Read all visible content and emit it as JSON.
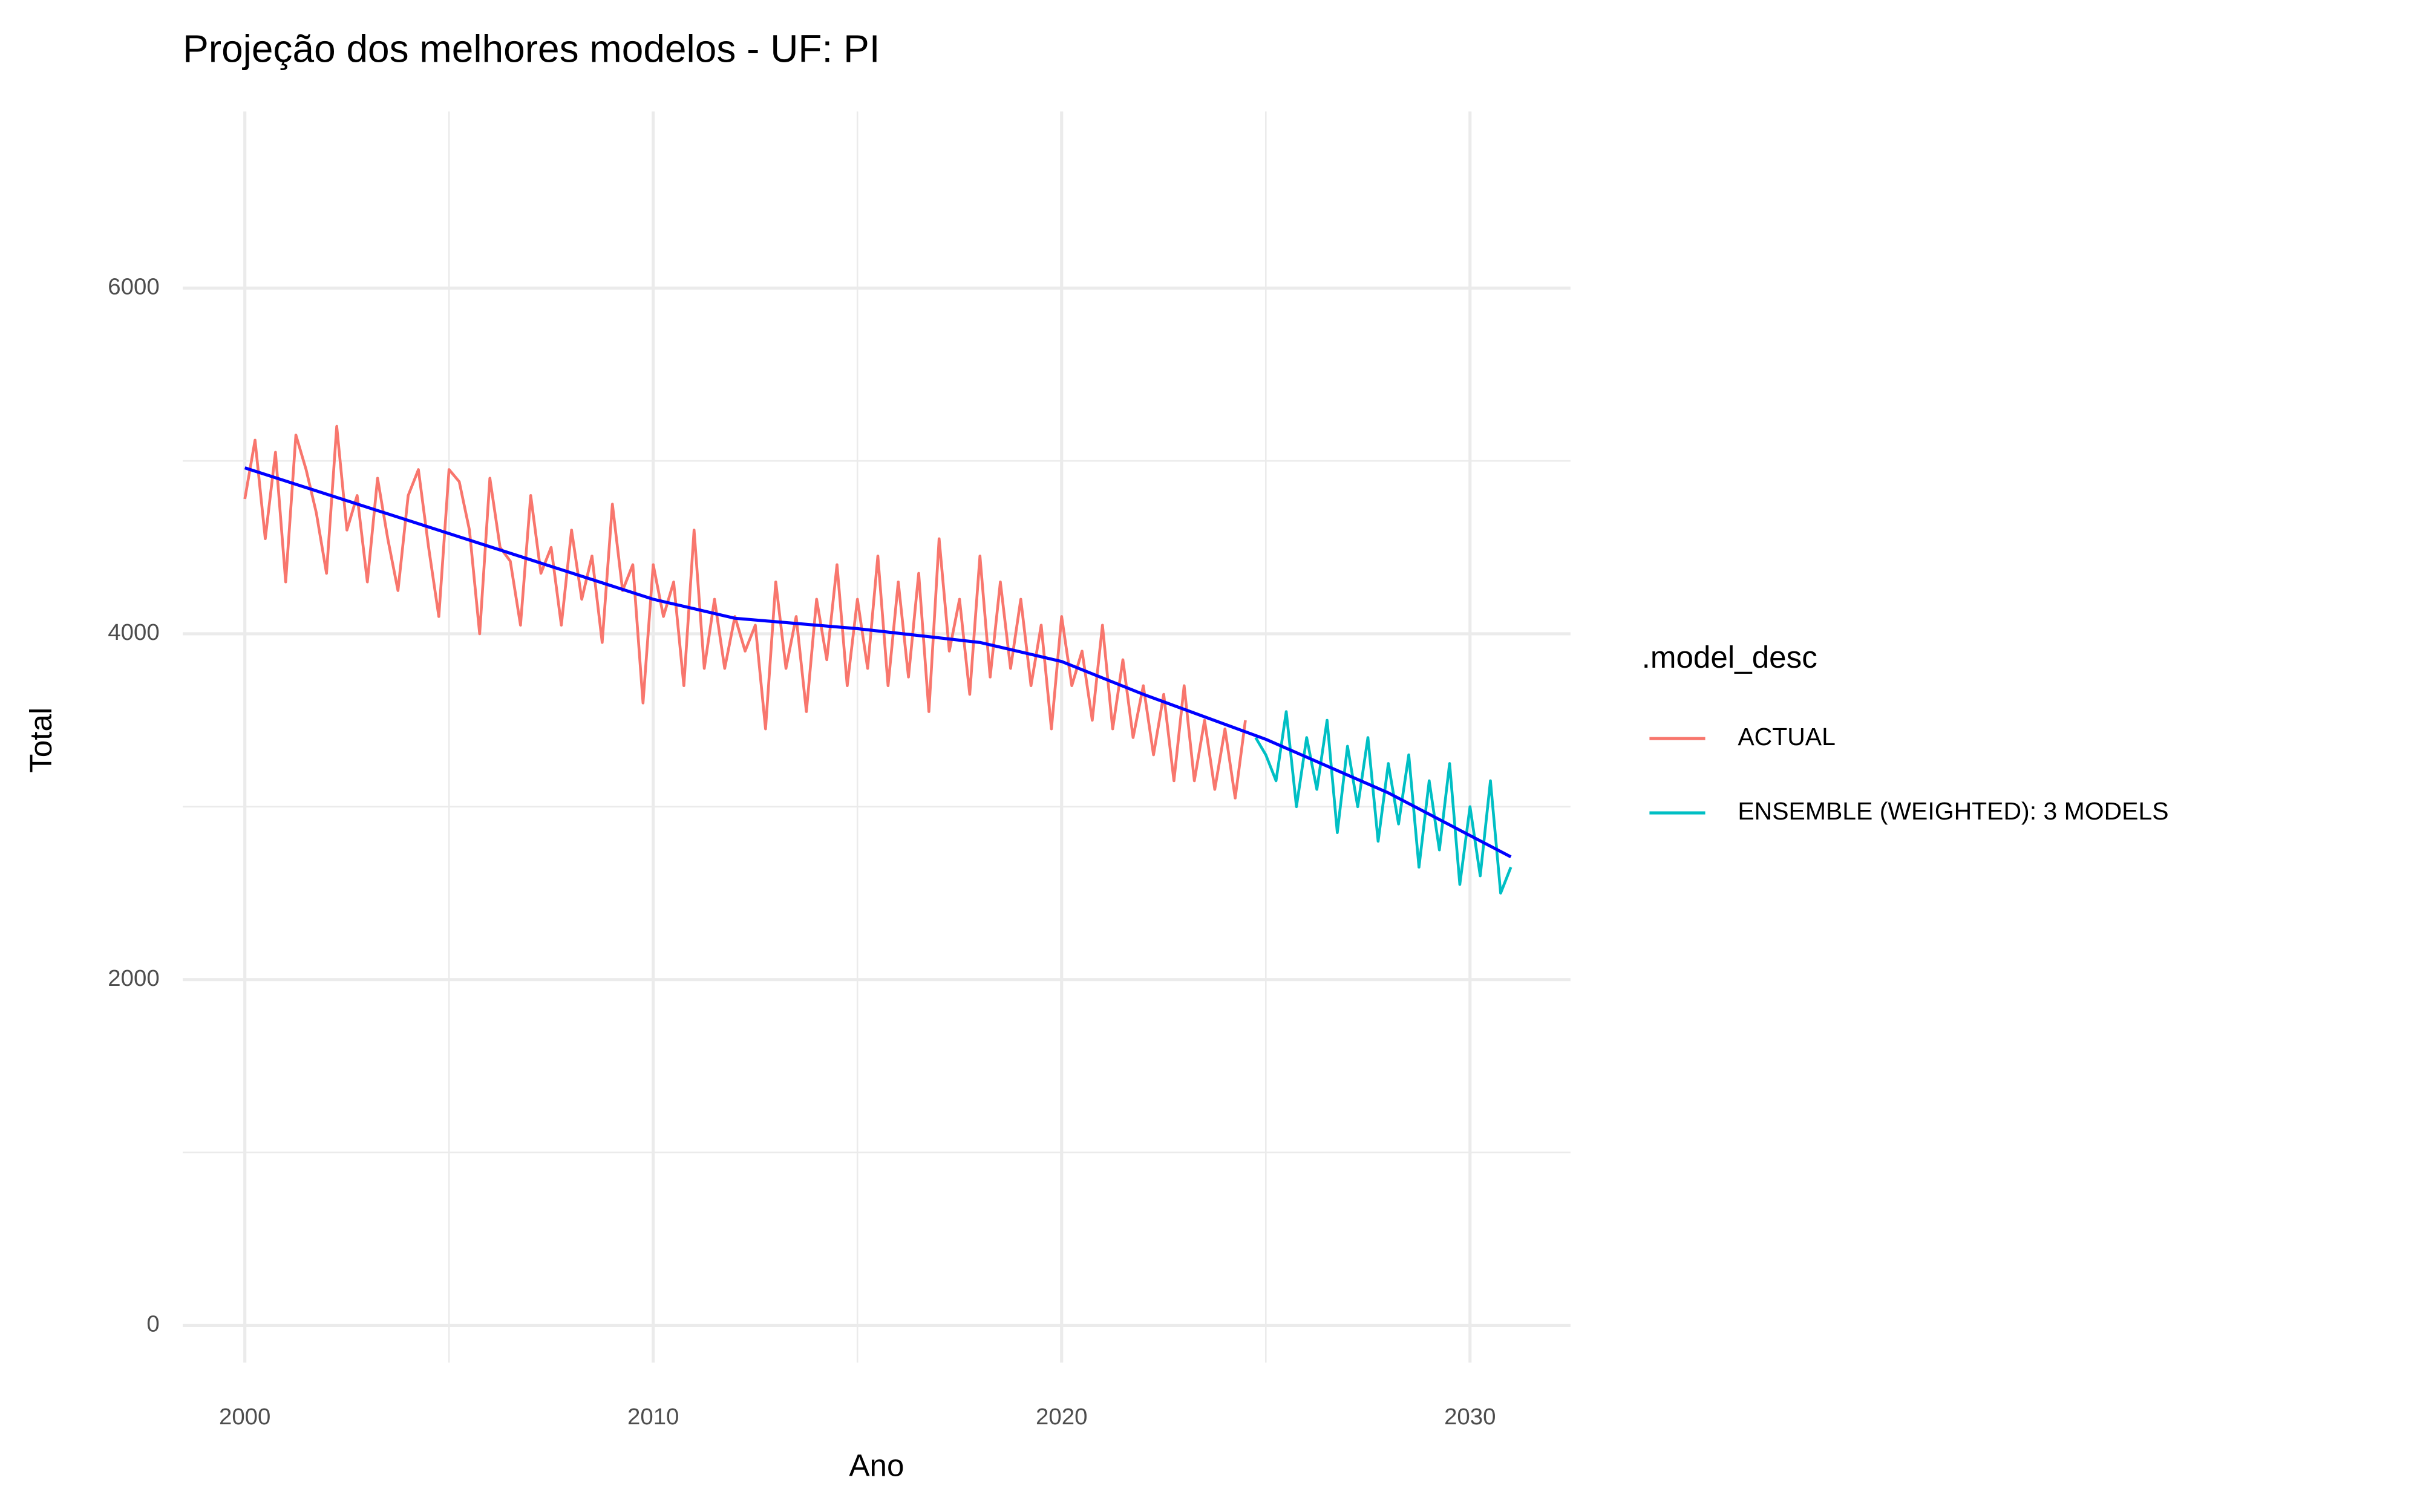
{
  "chart_data": {
    "type": "line",
    "title": "Projeção dos melhores modelos - UF: PI",
    "x_label": "Ano",
    "y_label": "Total",
    "legend_title": ".model_desc",
    "legend_position": "right",
    "grid": true,
    "xlim": [
      1998.48,
      2032.46
    ],
    "ylim": [
      -215,
      7021
    ],
    "xticks": [
      2000,
      2010,
      2020,
      2030
    ],
    "yticks": [
      0,
      2000,
      4000,
      6000
    ],
    "series": [
      {
        "name": "ACTUAL",
        "color": "#F8766D",
        "x": [
          2000,
          2000.25,
          2000.5,
          2000.75,
          2001,
          2001.25,
          2001.5,
          2001.75,
          2002,
          2002.25,
          2002.5,
          2002.75,
          2003,
          2003.25,
          2003.5,
          2003.75,
          2004,
          2004.25,
          2004.5,
          2004.75,
          2005,
          2005.25,
          2005.5,
          2005.75,
          2006,
          2006.25,
          2006.5,
          2006.75,
          2007,
          2007.25,
          2007.5,
          2007.75,
          2008,
          2008.25,
          2008.5,
          2008.75,
          2009,
          2009.25,
          2009.5,
          2009.75,
          2010,
          2010.25,
          2010.5,
          2010.75,
          2011,
          2011.25,
          2011.5,
          2011.75,
          2012,
          2012.25,
          2012.5,
          2012.75,
          2013,
          2013.25,
          2013.5,
          2013.75,
          2014,
          2014.25,
          2014.5,
          2014.75,
          2015,
          2015.25,
          2015.5,
          2015.75,
          2016,
          2016.25,
          2016.5,
          2016.75,
          2017,
          2017.25,
          2017.5,
          2017.75,
          2018,
          2018.25,
          2018.5,
          2018.75,
          2019,
          2019.25,
          2019.5,
          2019.75,
          2020,
          2020.25,
          2020.5,
          2020.75,
          2021,
          2021.25,
          2021.5,
          2021.75,
          2022,
          2022.25,
          2022.5,
          2022.75,
          2023,
          2023.25,
          2023.5,
          2023.75,
          2024,
          2024.25,
          2024.5
        ],
        "values": [
          4780,
          5120,
          4550,
          5050,
          4300,
          5150,
          4950,
          4700,
          4350,
          5200,
          4600,
          4800,
          4300,
          4900,
          4550,
          4250,
          4800,
          4950,
          4500,
          4100,
          4950,
          4880,
          4600,
          4000,
          4900,
          4500,
          4420,
          4050,
          4800,
          4350,
          4500,
          4050,
          4600,
          4200,
          4450,
          3950,
          4750,
          4250,
          4400,
          3600,
          4400,
          4100,
          4300,
          3700,
          4600,
          3800,
          4200,
          3800,
          4100,
          3900,
          4050,
          3450,
          4300,
          3800,
          4100,
          3550,
          4200,
          3850,
          4400,
          3700,
          4200,
          3800,
          4450,
          3700,
          4300,
          3750,
          4350,
          3550,
          4550,
          3900,
          4200,
          3650,
          4450,
          3750,
          4300,
          3800,
          4200,
          3700,
          4050,
          3450,
          4100,
          3700,
          3900,
          3500,
          4050,
          3450,
          3850,
          3400,
          3700,
          3300,
          3650,
          3150,
          3700,
          3150,
          3500,
          3100,
          3450,
          3050,
          3500
        ]
      },
      {
        "name": "ENSEMBLE (WEIGHTED): 3 MODELS",
        "color": "#00BFC4",
        "x": [
          2024.75,
          2025,
          2025.25,
          2025.5,
          2025.75,
          2026,
          2026.25,
          2026.5,
          2026.75,
          2027,
          2027.25,
          2027.5,
          2027.75,
          2028,
          2028.25,
          2028.5,
          2028.75,
          2029,
          2029.25,
          2029.5,
          2029.75,
          2030,
          2030.25,
          2030.5,
          2030.75,
          2031
        ],
        "values": [
          3400,
          3300,
          3150,
          3550,
          3000,
          3400,
          3100,
          3500,
          2850,
          3350,
          3000,
          3400,
          2800,
          3250,
          2900,
          3300,
          2650,
          3150,
          2750,
          3250,
          2550,
          3000,
          2600,
          3150,
          2500,
          2650
        ]
      }
    ],
    "trend_line": {
      "color": "#0000FF",
      "x": [
        2000,
        2005,
        2010,
        2012,
        2015,
        2018,
        2020,
        2022,
        2025,
        2028,
        2031
      ],
      "values": [
        4960,
        4580,
        4200,
        4090,
        4030,
        3950,
        3840,
        3650,
        3390,
        3080,
        2710
      ]
    }
  }
}
